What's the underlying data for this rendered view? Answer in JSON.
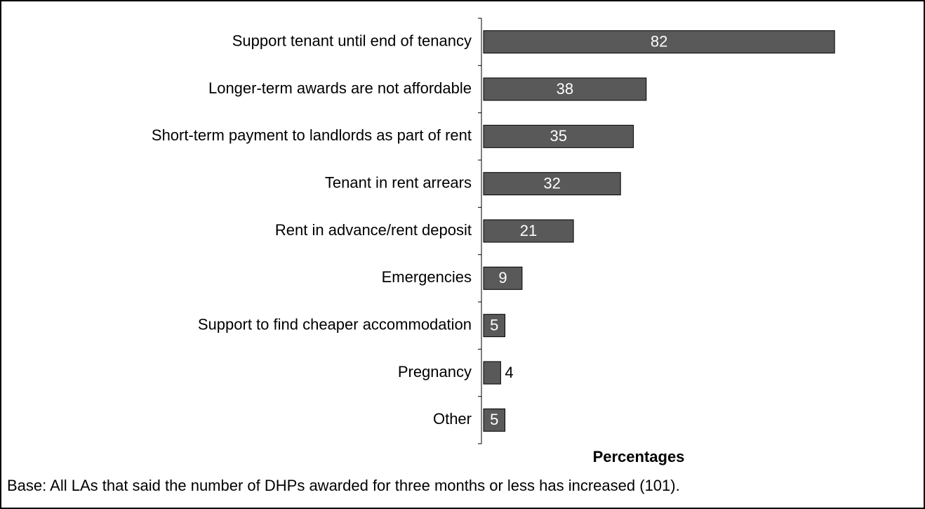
{
  "chart_data": {
    "type": "bar",
    "orientation": "horizontal",
    "categories": [
      "Support tenant until end of tenancy",
      "Longer-term awards are not affordable",
      "Short-term payment to landlords as part of rent",
      "Tenant in rent arrears",
      "Rent in advance/rent deposit",
      "Emergencies",
      "Support to find cheaper accommodation",
      "Pregnancy",
      "Other"
    ],
    "values": [
      82,
      38,
      35,
      32,
      21,
      9,
      5,
      4,
      5
    ],
    "color": "#595959",
    "xlim": [
      0,
      100
    ],
    "x_label": "Percentages",
    "footnote": "Base: All LAs that said the number of DHPs awarded for three months or less has increased (101)."
  }
}
